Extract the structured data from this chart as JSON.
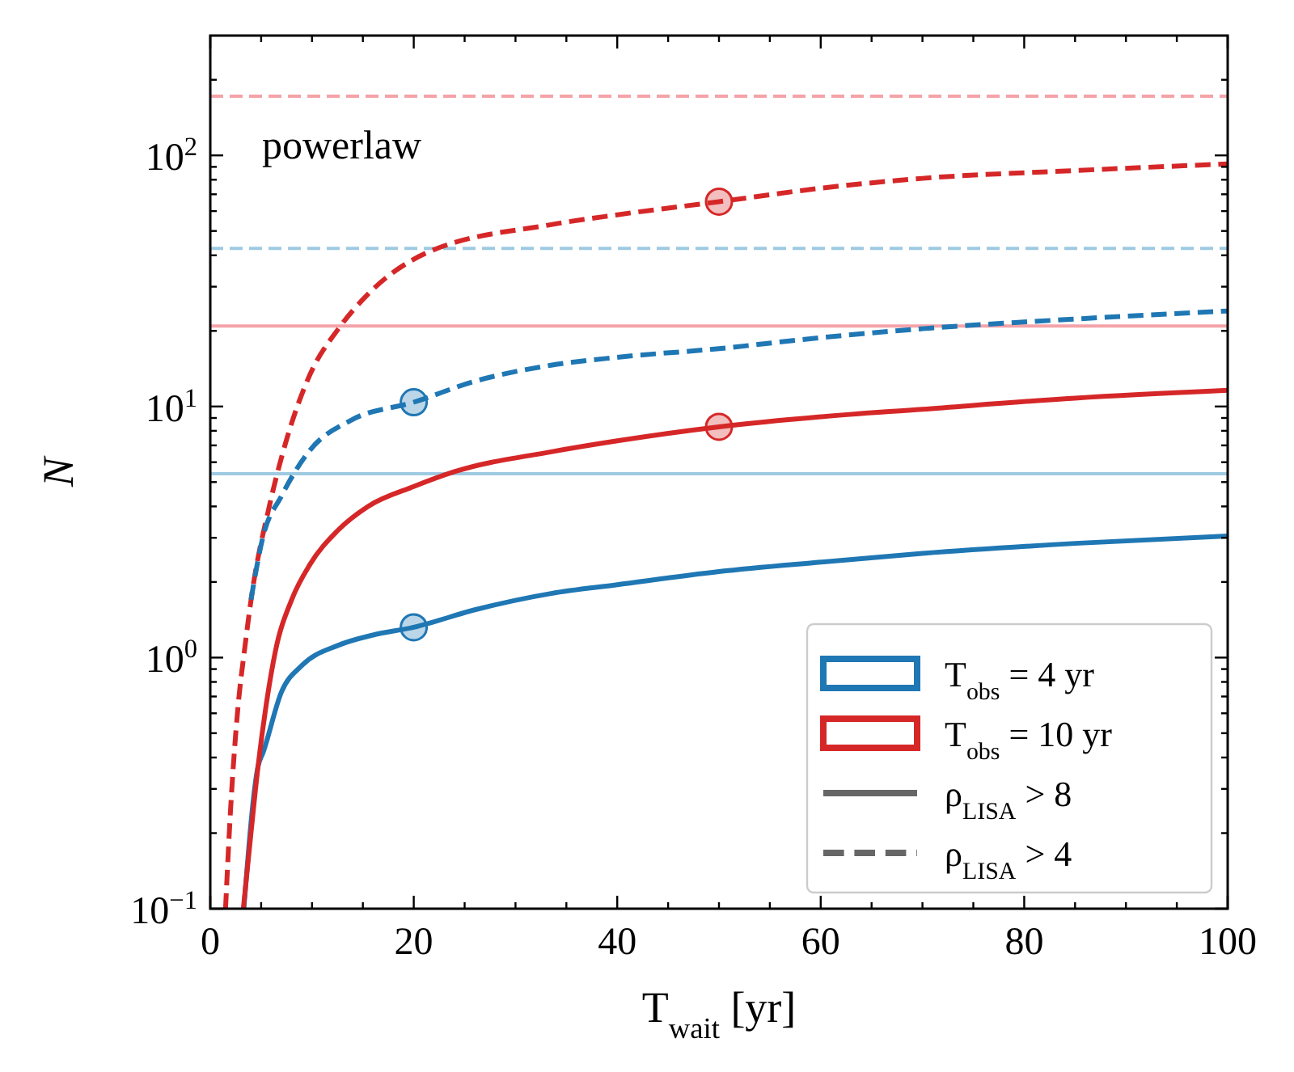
{
  "chart_data": {
    "type": "line",
    "xlabel": "T$_{wait}$  [yr]",
    "ylabel": "N",
    "annotations": [
      "powerlaw",
      "ρ$_{LISA}$ > 8",
      "ρ$_{LISA}$ > 4"
    ],
    "xlim": [
      0,
      100
    ],
    "ylim": [
      0.1,
      300
    ],
    "log": "y",
    "legend": "bottom right",
    "xticks": [
      0,
      {
        "value": 5,
        "label": null
      },
      {
        "value": 10,
        "label": null
      },
      {
        "value": 15,
        "label": null
      },
      20,
      {
        "value": 25,
        "label": null
      },
      {
        "value": 30,
        "label": null
      },
      {
        "value": 35,
        "label": null
      },
      40,
      {
        "value": 45,
        "label": null
      },
      {
        "value": 50,
        "label": null
      },
      {
        "value": 55,
        "label": null
      },
      60,
      {
        "value": 65,
        "label": null
      },
      {
        "value": 70,
        "label": null
      },
      {
        "value": 75,
        "label": null
      },
      80,
      {
        "value": 85,
        "label": null
      },
      {
        "value": 90,
        "label": null
      },
      {
        "value": 95,
        "label": null
      },
      100
    ],
    "yticks": [
      {
        "value": 0.1,
        "label": "10$^{−1}$"
      },
      {
        "value": 0.2,
        "label": null
      },
      {
        "value": 0.3,
        "label": null
      },
      {
        "value": 0.4,
        "label": null
      },
      {
        "value": 0.5,
        "label": null
      },
      {
        "value": 0.6,
        "label": null
      },
      {
        "value": 0.7,
        "label": null
      },
      {
        "value": 0.8,
        "label": null
      },
      {
        "value": 0.9,
        "label": null
      },
      {
        "value": 1,
        "label": "10$^{0}$"
      },
      {
        "value": 2,
        "label": null
      },
      {
        "value": 3,
        "label": null
      },
      {
        "value": 4,
        "label": null
      },
      {
        "value": 5,
        "label": null
      },
      {
        "value": 6,
        "label": null
      },
      {
        "value": 7,
        "label": null
      },
      {
        "value": 8,
        "label": null
      },
      {
        "value": 9,
        "label": null
      },
      {
        "value": 10,
        "label": "10$^{1}$"
      },
      {
        "value": 20,
        "label": null
      },
      {
        "value": 30,
        "label": null
      },
      {
        "value": 40,
        "label": null
      },
      {
        "value": 50,
        "label": null
      },
      {
        "value": 60,
        "label": null
      },
      {
        "value": 70,
        "label": null
      },
      {
        "value": 80,
        "label": null
      },
      {
        "value": 90,
        "label": null
      },
      {
        "value": 100,
        "label": "10$^{2}$"
      },
      {
        "value": 200,
        "label": null
      }
    ],
    "ref_lines": [
      {
        "axis": "y",
        "value": 172,
        "color": "#f4a3a8",
        "line_style": "dashed"
      },
      {
        "axis": "y",
        "value": 42.6,
        "color": "#9ecae1",
        "line_style": "dashed"
      },
      {
        "axis": "y",
        "value": 20.9,
        "color": "#f4a3a8",
        "line_style": "solid"
      },
      {
        "axis": "y",
        "value": 5.4,
        "color": "#9ecae1",
        "line_style": "solid"
      }
    ],
    "series": [
      {
        "name": "T$_{obs}$ = 4 yr",
        "color": "#1f77b4",
        "line_style": "solid",
        "x": [
          3.3,
          4.7,
          5.2,
          7,
          9,
          12.6,
          16,
          20,
          26,
          33.5,
          40,
          50,
          60,
          70,
          85,
          100
        ],
        "values": [
          0.1,
          0.37,
          0.42,
          0.73,
          0.93,
          1.12,
          1.23,
          1.32,
          1.55,
          1.8,
          1.95,
          2.2,
          2.4,
          2.6,
          2.85,
          3.05
        ]
      },
      {
        "name": "T$_{obs}$ = 10 yr",
        "color": "#d62728",
        "line_style": "solid",
        "x": [
          3.25,
          4,
          4.7,
          5.5,
          6.4,
          8,
          9.8,
          12.5,
          15.5,
          20,
          24,
          33.5,
          40,
          50,
          60,
          70,
          85,
          100
        ],
        "values": [
          0.1,
          0.2,
          0.37,
          0.65,
          1.06,
          1.7,
          2.35,
          3.2,
          4,
          4.8,
          5.5,
          6.6,
          7.3,
          8.3,
          9.1,
          9.75,
          10.8,
          11.6
        ]
      },
      {
        "color": "#d62728",
        "line_style": "dashed",
        "x": [
          1.5,
          2,
          2.7,
          3.4,
          4.1,
          5.8,
          7.55,
          9.8,
          12.6,
          15.5,
          21.2,
          33.5,
          40,
          50,
          60,
          70,
          85,
          100
        ],
        "values": [
          0.1,
          0.25,
          0.62,
          1.1,
          1.8,
          4,
          7.5,
          13.4,
          20.4,
          28,
          40.8,
          53,
          58,
          65.4,
          74,
          81,
          87,
          92.5
        ]
      },
      {
        "color": "#1f77b4",
        "line_style": "dashed",
        "x": [
          4,
          5.2,
          7,
          9.8,
          13.8,
          20,
          26,
          33.5,
          40,
          50,
          60,
          70,
          85,
          100
        ],
        "values": [
          1.7,
          3.05,
          4.4,
          6.7,
          8.8,
          10.4,
          12.6,
          14.6,
          15.7,
          17,
          18.8,
          20.4,
          22.3,
          24
        ]
      },
      {
        "type": "scatter",
        "color": "#1f77b4",
        "marker": "circle",
        "x": [
          20,
          20
        ],
        "values": [
          10.4,
          1.32
        ]
      },
      {
        "type": "scatter",
        "color": "#d62728",
        "marker": "circle",
        "x": [
          50,
          50
        ],
        "values": [
          65.4,
          8.3
        ]
      }
    ]
  }
}
